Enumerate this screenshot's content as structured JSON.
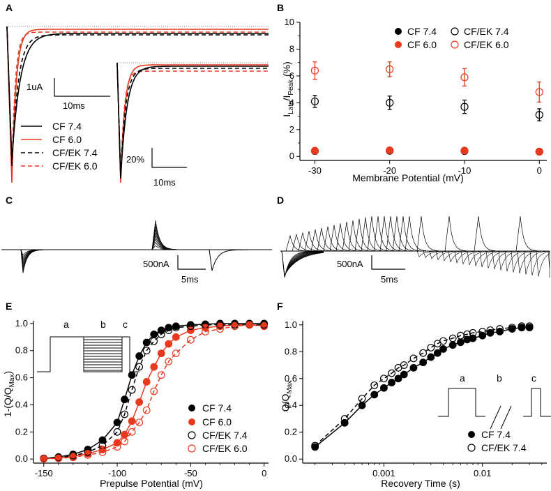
{
  "colors": {
    "black": "#000000",
    "red": "#e8391f",
    "grey": "#555555"
  },
  "panels": {
    "A": {
      "label": "A",
      "scalebar_current": "1uA",
      "scalebar_time": "10ms",
      "inset_scalebar_pct": "20%",
      "inset_scalebar_time": "10ms",
      "legend": [
        "CF 7.4",
        "CF 6.0",
        "CF/EK 7.4",
        "CF/EK 6.0"
      ]
    },
    "B": {
      "label": "B"
    },
    "C": {
      "label": "C",
      "scalebar_current": "500nA",
      "scalebar_time": "5ms"
    },
    "D": {
      "label": "D",
      "scalebar_current": "500nA",
      "scalebar_time": "5ms"
    },
    "E": {
      "label": "E",
      "protocol": [
        "a",
        "b",
        "c"
      ]
    },
    "F": {
      "label": "F",
      "protocol": [
        "a",
        "b",
        "c"
      ]
    }
  },
  "chart_data": [
    {
      "id": "B",
      "type": "scatter",
      "title": "",
      "xlabel": "Membrane Potential (mV)",
      "ylabel_parts": {
        "base": "I",
        "sub1": "Late",
        "mid": "/I",
        "sub2": "Peak",
        "unit": " (%)"
      },
      "xlim": [
        -32,
        1
      ],
      "ylim": [
        -0.3,
        10
      ],
      "xticks": [
        -30,
        -20,
        -10,
        0
      ],
      "yticks": [
        0,
        2,
        4,
        6,
        8,
        10
      ],
      "x": [
        -30,
        -20,
        -10,
        0
      ],
      "legend_position": "top-right",
      "series": [
        {
          "name": "CF 7.4",
          "color": "#000000",
          "filled": true,
          "values": [
            0.4,
            0.42,
            0.4,
            0.35
          ],
          "errors": [
            0.05,
            0.05,
            0.05,
            0.05
          ]
        },
        {
          "name": "CF 6.0",
          "color": "#e8391f",
          "filled": true,
          "values": [
            0.42,
            0.45,
            0.43,
            0.35
          ],
          "errors": [
            0.05,
            0.05,
            0.05,
            0.05
          ]
        },
        {
          "name": "CF/EK 7.4",
          "color": "#000000",
          "filled": false,
          "values": [
            4.1,
            4.0,
            3.7,
            3.1
          ],
          "errors": [
            0.45,
            0.5,
            0.5,
            0.45
          ]
        },
        {
          "name": "CF/EK 6.0",
          "color": "#e8391f",
          "filled": false,
          "values": [
            6.4,
            6.5,
            5.9,
            4.8
          ],
          "errors": [
            0.65,
            0.55,
            0.65,
            0.75
          ]
        }
      ]
    },
    {
      "id": "E",
      "type": "scatter",
      "title": "",
      "xlabel": "Prepulse Potential (mV)",
      "ylabel_parts": {
        "base": "1-(Q/Q",
        "sub": "Max",
        "end": ")"
      },
      "xlim": [
        -157,
        3
      ],
      "ylim": [
        -0.03,
        1.02
      ],
      "xticks": [
        -150,
        -100,
        -50,
        0
      ],
      "yticks": [
        0.0,
        0.2,
        0.4,
        0.6,
        0.8,
        1.0
      ],
      "legend_position": "bottom-right",
      "x": [
        -150,
        -140,
        -130,
        -120,
        -110,
        -100,
        -95,
        -90,
        -85,
        -80,
        -75,
        -70,
        -65,
        -60,
        -50,
        -40,
        -30,
        -20,
        -10,
        0
      ],
      "series": [
        {
          "name": "CF 7.4",
          "color": "#000000",
          "filled": true,
          "dashed": false,
          "values": [
            0.005,
            0.015,
            0.035,
            0.07,
            0.14,
            0.27,
            0.44,
            0.62,
            0.76,
            0.86,
            0.92,
            0.95,
            0.97,
            0.98,
            0.99,
            0.995,
            1.0,
            1.0,
            1.0,
            1.0
          ]
        },
        {
          "name": "CF 6.0",
          "color": "#e8391f",
          "filled": true,
          "dashed": false,
          "values": [
            0.003,
            0.008,
            0.02,
            0.04,
            0.07,
            0.12,
            0.18,
            0.28,
            0.42,
            0.57,
            0.68,
            0.78,
            0.85,
            0.9,
            0.95,
            0.97,
            0.98,
            0.99,
            0.99,
            0.985
          ]
        },
        {
          "name": "CF/EK 7.4",
          "color": "#000000",
          "filled": false,
          "dashed": true,
          "values": [
            0.004,
            0.01,
            0.025,
            0.05,
            0.1,
            0.2,
            0.33,
            0.51,
            0.68,
            0.8,
            0.87,
            0.92,
            0.95,
            0.97,
            0.98,
            0.99,
            0.99,
            0.99,
            0.99,
            0.99
          ]
        },
        {
          "name": "CF/EK 6.0",
          "color": "#e8391f",
          "filled": false,
          "dashed": true,
          "values": [
            0.002,
            0.005,
            0.012,
            0.03,
            0.05,
            0.09,
            0.13,
            0.2,
            0.27,
            0.36,
            0.5,
            0.62,
            0.72,
            0.78,
            0.88,
            0.94,
            0.96,
            0.98,
            0.99,
            0.98
          ]
        }
      ]
    },
    {
      "id": "F",
      "type": "scatter",
      "title": "",
      "xlabel": "Recovery Time (s)",
      "xscale": "log",
      "ylabel_parts": {
        "base": "Q/Q",
        "sub": "Max"
      },
      "xlim": [
        0.00015,
        0.045
      ],
      "ylim": [
        -0.03,
        1.03
      ],
      "xticks": [
        0.001,
        0.01
      ],
      "xtick_labels": [
        "0.001",
        "0.01"
      ],
      "yticks": [
        0.0,
        0.2,
        0.4,
        0.6,
        0.8,
        1.0
      ],
      "legend_position": "bottom-right",
      "x": [
        0.0002,
        0.0004,
        0.0006,
        0.0008,
        0.001,
        0.0012,
        0.0014,
        0.0016,
        0.002,
        0.0025,
        0.003,
        0.0035,
        0.004,
        0.005,
        0.006,
        0.007,
        0.008,
        0.01,
        0.012,
        0.015,
        0.02,
        0.025,
        0.03
      ],
      "series": [
        {
          "name": "CF 7.4",
          "color": "#000000",
          "filled": true,
          "dashed": false,
          "values": [
            0.09,
            0.27,
            0.4,
            0.48,
            0.53,
            0.57,
            0.6,
            0.63,
            0.68,
            0.72,
            0.76,
            0.79,
            0.82,
            0.85,
            0.87,
            0.89,
            0.9,
            0.92,
            0.94,
            0.95,
            0.97,
            0.98,
            0.98
          ]
        },
        {
          "name": "CF/EK 7.4",
          "color": "#000000",
          "filled": false,
          "dashed": true,
          "values": [
            0.1,
            0.3,
            0.45,
            0.55,
            0.6,
            0.64,
            0.68,
            0.7,
            0.75,
            0.79,
            0.83,
            0.86,
            0.88,
            0.9,
            0.92,
            0.93,
            0.94,
            0.95,
            0.96,
            0.97,
            0.98,
            0.99,
            0.99
          ]
        }
      ]
    }
  ]
}
